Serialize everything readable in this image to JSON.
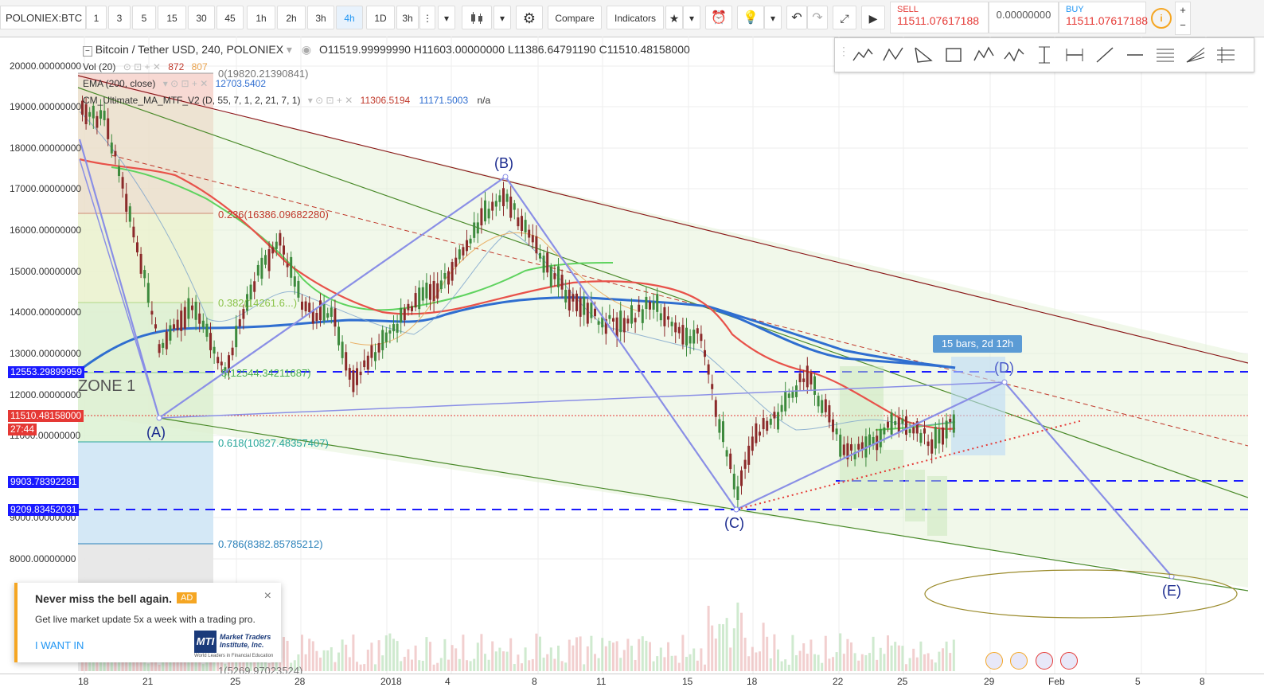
{
  "symbol": "POLONIEX:BTC",
  "intervals": [
    "1",
    "3",
    "5",
    "15",
    "30",
    "45",
    "1h",
    "2h",
    "3h",
    "4h",
    "1D",
    "3h"
  ],
  "active_interval": "4h",
  "toolbar": {
    "compare": "Compare",
    "indicators": "Indicators"
  },
  "trade": {
    "sell_label": "SELL",
    "sell_price": "11511.07617188",
    "spread": "0.00000000",
    "buy_label": "BUY",
    "buy_price": "11511.07617188"
  },
  "legend": {
    "title": "Bitcoin / Tether USD, 240, POLONIEX",
    "ohlc": "O11519.99999990  H11603.00000000  L11386.64791190  C11510.48158000",
    "vol_label": "Vol (20)",
    "vol_v1": "872",
    "vol_v2": "807",
    "ema_label": "EMA (200, close)",
    "ema_val": "12703.5402",
    "cm_label": "CM_Ultimate_MA_MTF_V2 (D, 55, 7, 1, 2, 21, 7, 1)",
    "cm_v1": "11306.5194",
    "cm_v2": "11171.5003",
    "cm_v3": "n/a"
  },
  "yaxis": [
    "20000.00000000",
    "19000.00000000",
    "18000.00000000",
    "17000.00000000",
    "16000.00000000",
    "15000.00000000",
    "14000.00000000",
    "13000.00000000",
    "12000.00000000",
    "11000.00000000",
    "9000.00000000",
    "8000.00000000"
  ],
  "xaxis": [
    "18",
    "21",
    "25",
    "28",
    "2018",
    "4",
    "8",
    "11",
    "15",
    "18",
    "22",
    "25",
    "29",
    "Feb",
    "5",
    "8"
  ],
  "price_tags": [
    {
      "text": "12553.29899959",
      "color": "#1a1aff"
    },
    {
      "text": "11510.48158000",
      "color": "#e53935"
    },
    {
      "text": "27:44",
      "color": "#e53935"
    },
    {
      "text": "9903.78392281",
      "color": "#1a1aff"
    },
    {
      "text": "9209.83452031",
      "color": "#1a1aff"
    }
  ],
  "fib": {
    "f0": "0(19820.21390841)",
    "f236": "0.236(16386.09682280)",
    "f382": "0.382(14261.6...)",
    "f5": "5(12544.34211687)",
    "f618": "0.618(10827.48357407)",
    "f786": "0.786(8382.85785212)",
    "f1": "1(5269.97023524)"
  },
  "zone_label": "ZONE 1",
  "waves": [
    "(A)",
    "(B)",
    "(C)",
    "(D)",
    "(E)"
  ],
  "bars_tooltip": "15 bars, 2d 12h",
  "popup": {
    "title": "Never miss the bell again.",
    "badge": "AD",
    "body": "Get live market update 5x a week with a trading pro.",
    "cta": "I WANT IN",
    "brand": "Market Traders Institute, Inc.",
    "brand_sub": "World Leaders in Financial Education",
    "close": "×"
  }
}
